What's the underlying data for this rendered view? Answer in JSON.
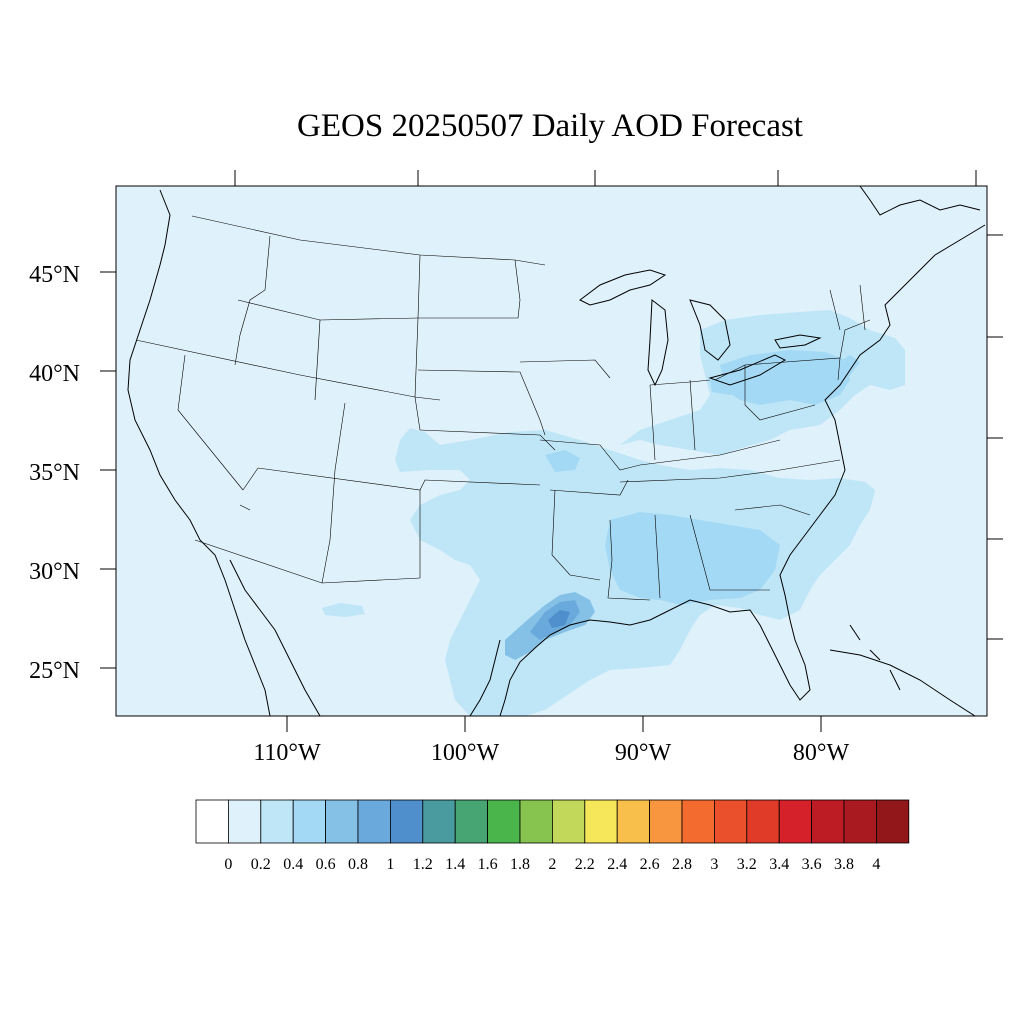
{
  "title": "GEOS 20250507 Daily AOD Forecast",
  "colors": {
    "ocean": "#DFF1FA",
    "land_low": "#DFF1FA",
    "aod_02": "#BFE6F7",
    "aod_04": "#A3D9F4",
    "aod_06": "#85C1E6",
    "aod_08": "#6AA9DC",
    "aod_10": "#4E8FCC",
    "outline": "#000000"
  },
  "map": {
    "lat_labels": [
      "45°N",
      "40°N",
      "35°N",
      "30°N",
      "25°N"
    ],
    "lon_labels": [
      "110°W",
      "100°W",
      "90°W",
      "80°W"
    ]
  },
  "colorbar": {
    "labels": [
      "0",
      "0.2",
      "0.4",
      "0.6",
      "0.8",
      "1",
      "1.2",
      "1.4",
      "1.6",
      "1.8",
      "2",
      "2.2",
      "2.4",
      "2.6",
      "2.8",
      "3",
      "3.2",
      "3.4",
      "3.6",
      "3.8",
      "4"
    ],
    "colors": [
      "#FFFFFF",
      "#DFF1FA",
      "#BFE6F7",
      "#A3D9F4",
      "#85C1E6",
      "#6AA9DC",
      "#4E8FCC",
      "#4A9B9F",
      "#46A573",
      "#4AB54A",
      "#86C44F",
      "#C2D85A",
      "#F6E65A",
      "#F8BF4A",
      "#F7963E",
      "#F46B30",
      "#EB502C",
      "#E03A28",
      "#D52129",
      "#BE1C24",
      "#A81A20",
      "#91171B"
    ]
  }
}
